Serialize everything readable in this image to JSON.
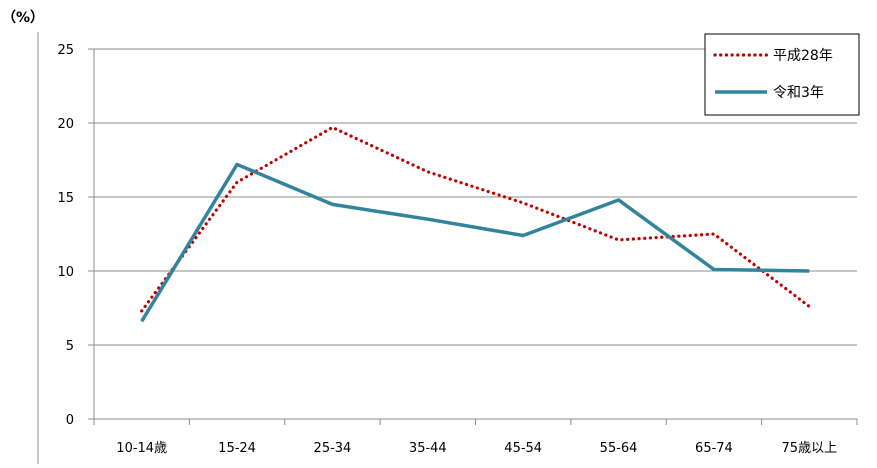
{
  "chart_data": {
    "type": "line",
    "unit_label": "（%）",
    "categories": [
      "10-14歳",
      "15-24",
      "25-34",
      "35-44",
      "45-54",
      "55-64",
      "65-74",
      "75歳以上"
    ],
    "ylim": [
      0,
      25
    ],
    "yticks": [
      0,
      5,
      10,
      15,
      20,
      25
    ],
    "grid": true,
    "legend_position": "top-right",
    "series": [
      {
        "name": "平成28年",
        "values": [
          7.3,
          16.0,
          19.7,
          16.7,
          14.6,
          12.1,
          12.5,
          7.6
        ],
        "color": "#c00000",
        "style": "dotted"
      },
      {
        "name": "令和3年",
        "values": [
          6.6,
          17.2,
          14.5,
          13.5,
          12.4,
          14.8,
          10.1,
          10.0
        ],
        "color": "#31849b",
        "style": "solid"
      }
    ]
  }
}
